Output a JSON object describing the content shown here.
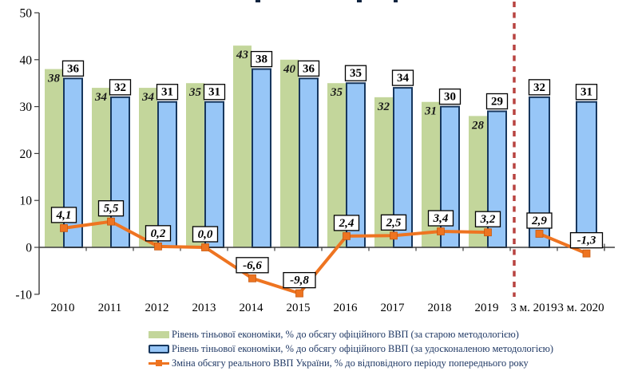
{
  "chart_data": {
    "type": "combo",
    "categories": [
      "2010",
      "2011",
      "2012",
      "2013",
      "2014",
      "2015",
      "2016",
      "2017",
      "2018",
      "2019",
      "3 м. 2019",
      "3 м. 2020"
    ],
    "y_axis": {
      "min": -10,
      "max": 50,
      "ticks": [
        50,
        40,
        30,
        20,
        10,
        0,
        -10
      ]
    },
    "grid": false,
    "legend_position": "bottom",
    "divider": {
      "between": [
        "2019",
        "3 м. 2019"
      ],
      "color": "#b84340",
      "style": "dashed"
    },
    "series": [
      {
        "name": "Рівень тіньової економіки, % до обсягу офіційного ВВП (за старою методологією)",
        "type": "bar",
        "color": "#c3d69b",
        "values": [
          38,
          34,
          34,
          35,
          43,
          40,
          35,
          32,
          31,
          28,
          null,
          null
        ]
      },
      {
        "name": "Рівень тіньової економіки, % до обсягу офіційного ВВП (за удосконаленою методологією)",
        "type": "bar",
        "color": "#97c6f7",
        "border_color": "#17375e",
        "values": [
          36,
          32,
          31,
          31,
          38,
          36,
          35,
          34,
          30,
          29,
          32,
          31
        ]
      },
      {
        "name": "Зміна обсягу реального ВВП України, % до відповідного періоду попереднього року",
        "type": "line",
        "color": "#ee7421",
        "marker": "square",
        "values": [
          4.1,
          5.5,
          0.2,
          0,
          -6.6,
          -9.8,
          2.4,
          2.5,
          3.4,
          3.2,
          2.9,
          -1.3
        ],
        "point_labels": [
          "4,1",
          "5,5",
          "0,2",
          "0,0",
          "-6,6",
          "-9,8",
          "2,4",
          "2,5",
          "3,4",
          "3,2",
          "2,9",
          "-1,3"
        ],
        "gap_after_index": 9
      }
    ],
    "colors": {
      "axis": "#3c3c3c",
      "tick_text": "#000000",
      "bar_label_text": "#1a1a1a",
      "label_box_bg": "#ffffff",
      "label_box_border": "#000000",
      "legend_text": "#1f3864"
    }
  }
}
